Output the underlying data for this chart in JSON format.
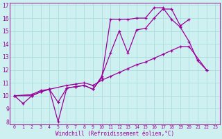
{
  "xlabel": "Windchill (Refroidissement éolien,°C)",
  "background_color": "#cff0f0",
  "grid_color": "#aadddd",
  "line_color": "#990099",
  "spine_color": "#993399",
  "xlim": [
    -0.5,
    23.5
  ],
  "ylim": [
    7.8,
    17.2
  ],
  "yticks": [
    8,
    9,
    10,
    11,
    12,
    13,
    14,
    15,
    16,
    17
  ],
  "xticks": [
    0,
    1,
    2,
    3,
    4,
    5,
    6,
    7,
    8,
    9,
    10,
    11,
    12,
    13,
    14,
    15,
    16,
    17,
    18,
    19,
    20,
    21,
    22,
    23
  ],
  "series1_x": [
    0,
    1,
    2,
    3,
    4,
    5,
    6,
    7,
    8,
    9,
    10,
    11,
    12,
    13,
    14,
    15,
    16,
    17,
    18,
    19,
    20,
    21,
    22
  ],
  "series1_y": [
    10.0,
    9.4,
    10.0,
    10.3,
    10.5,
    8.0,
    10.6,
    10.7,
    10.8,
    10.5,
    11.4,
    15.9,
    15.9,
    15.9,
    16.0,
    16.0,
    16.8,
    16.8,
    15.9,
    15.3,
    14.2,
    12.7,
    12.0
  ],
  "series2_x": [
    0,
    2,
    3,
    4,
    5,
    6,
    7,
    8,
    9,
    10,
    11,
    12,
    13,
    14,
    15,
    16,
    17,
    18,
    19,
    20
  ],
  "series2_y": [
    10.0,
    10.0,
    10.3,
    10.5,
    9.5,
    10.6,
    10.7,
    10.8,
    10.5,
    11.5,
    13.3,
    15.0,
    13.3,
    15.1,
    15.2,
    16.0,
    16.7,
    16.7,
    15.4,
    15.9
  ],
  "series3_x": [
    0,
    2,
    3,
    4,
    6,
    7,
    8,
    9,
    10,
    11,
    12,
    13,
    14,
    15,
    16,
    17,
    18,
    19,
    20,
    22
  ],
  "series3_y": [
    10.0,
    10.1,
    10.4,
    10.5,
    10.8,
    10.9,
    11.0,
    10.8,
    11.2,
    11.5,
    11.8,
    12.1,
    12.4,
    12.6,
    12.9,
    13.2,
    13.5,
    13.8,
    13.8,
    12.0
  ]
}
